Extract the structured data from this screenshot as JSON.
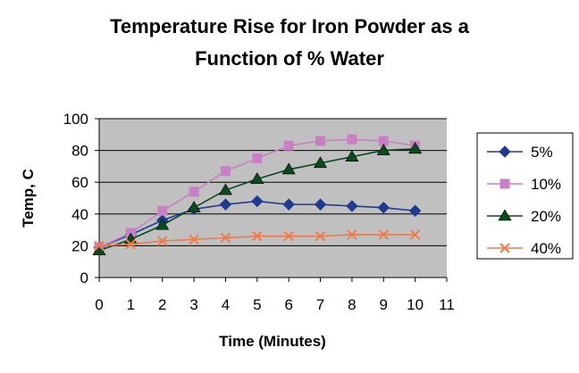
{
  "chart_data": {
    "type": "line",
    "title_lines": [
      "Temperature Rise for Iron Powder as a",
      "Function of % Water"
    ],
    "xlabel": "Time (Minutes)",
    "ylabel": "Temp, C",
    "x": [
      0,
      1,
      2,
      3,
      4,
      5,
      6,
      7,
      8,
      9,
      10
    ],
    "xlim": [
      0,
      11
    ],
    "ylim": [
      0,
      100
    ],
    "xticks": [
      "0",
      "1",
      "2",
      "3",
      "4",
      "5",
      "6",
      "7",
      "8",
      "9",
      "10",
      "11"
    ],
    "yticks": [
      "0",
      "20",
      "40",
      "60",
      "80",
      "100"
    ],
    "grid": "horizontal",
    "plot_background": "#c0c0c0",
    "legend_position": "right",
    "series": [
      {
        "name": "5%",
        "color": "#1f3a8f",
        "marker": "diamond",
        "values": [
          19,
          27,
          36,
          43,
          46,
          48,
          46,
          46,
          45,
          44,
          42
        ]
      },
      {
        "name": "10%",
        "color": "#c87fc3",
        "marker": "square",
        "values": [
          19,
          28,
          42,
          54,
          67,
          75,
          83,
          86,
          87,
          86,
          83
        ]
      },
      {
        "name": "20%",
        "color": "#0b4a1e",
        "marker": "triangle",
        "values": [
          17,
          24,
          33,
          44,
          55,
          62,
          68,
          72,
          76,
          80,
          81
        ]
      },
      {
        "name": "40%",
        "color": "#f07a4a",
        "marker": "x",
        "values": [
          20,
          21,
          23,
          24,
          25,
          26,
          26,
          26,
          27,
          27,
          27
        ]
      }
    ]
  }
}
